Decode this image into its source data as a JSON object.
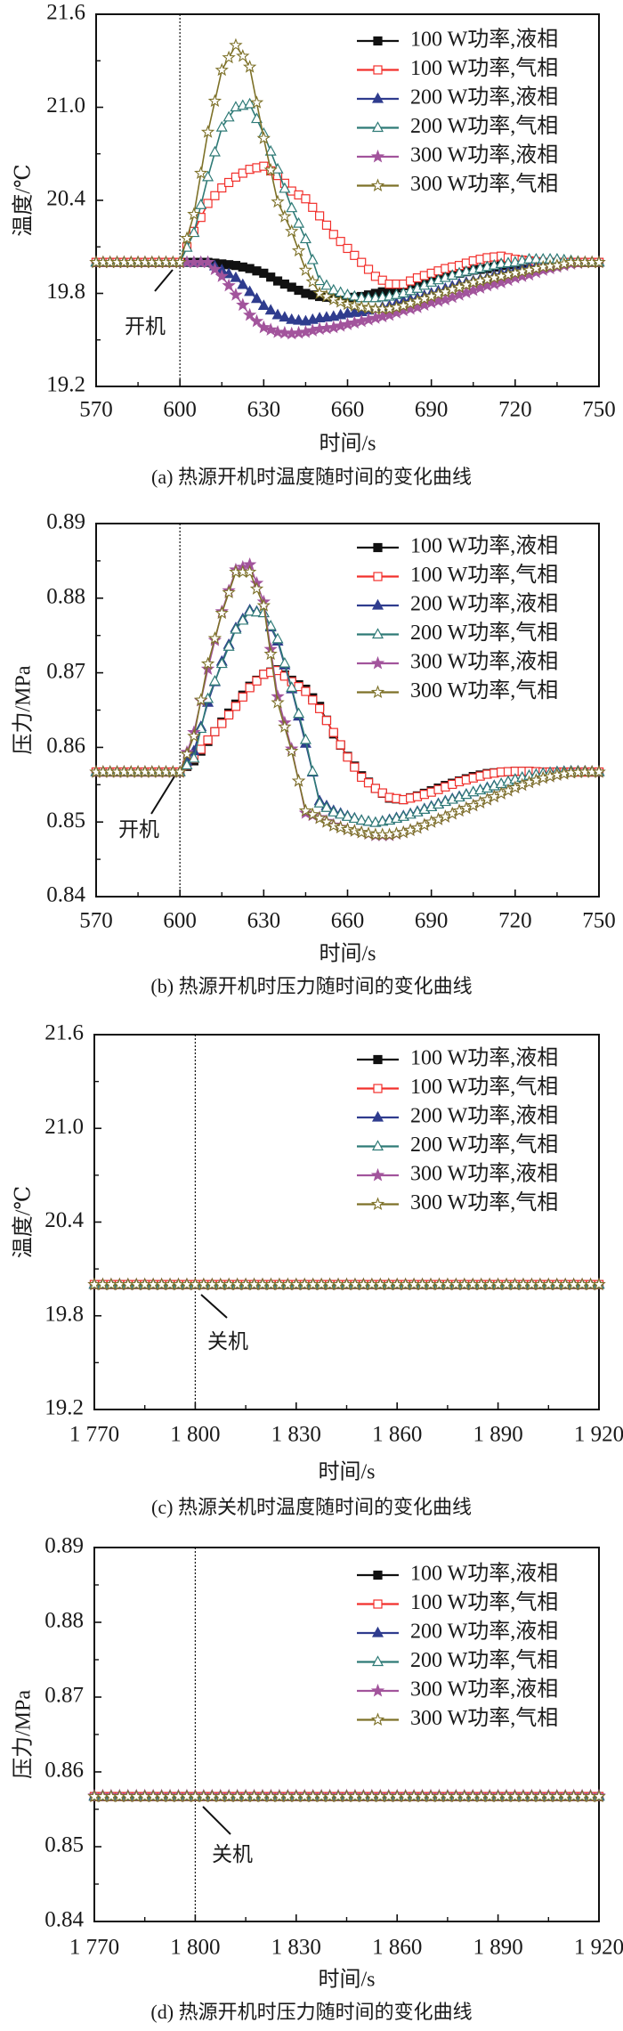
{
  "chart_data": [
    {
      "type": "line",
      "title": "(a) 热源开机时温度随时间的变化曲线",
      "xlabel": "时间/s",
      "ylabel": "温度/℃",
      "xlim": [
        570,
        750
      ],
      "ylim": [
        19.2,
        21.6
      ],
      "xticks": [
        570,
        600,
        630,
        660,
        690,
        720,
        750
      ],
      "xtick_labels": [
        "570",
        "600",
        "630",
        "660",
        "690",
        "720",
        "750"
      ],
      "yticks": [
        19.2,
        19.8,
        20.4,
        21.0,
        21.6
      ],
      "ytick_labels": [
        "19.2",
        "19.8",
        "20.4",
        "21.0",
        "21.6"
      ],
      "grid": false,
      "legend_position": "top-right",
      "annotation": {
        "text": "开机",
        "x": 600
      },
      "x": [
        570,
        575,
        580,
        585,
        590,
        595,
        600,
        605,
        610,
        615,
        620,
        625,
        630,
        635,
        640,
        645,
        650,
        655,
        660,
        665,
        670,
        675,
        680,
        685,
        690,
        695,
        700,
        705,
        710,
        715,
        720,
        725,
        730,
        735,
        740,
        745,
        750
      ],
      "series": [
        {
          "name": "100 W功率,液相",
          "color": "#111111",
          "marker": "square-filled",
          "y": [
            20,
            20,
            20,
            20,
            20,
            20,
            20,
            20.0,
            20.0,
            19.99,
            19.98,
            19.96,
            19.93,
            19.88,
            19.84,
            19.8,
            19.78,
            19.77,
            19.77,
            19.78,
            19.8,
            19.82,
            19.85,
            19.87,
            19.89,
            19.91,
            19.93,
            19.95,
            19.96,
            19.98,
            19.99,
            20.0,
            20.0,
            20.0,
            20.0,
            20.0,
            20.0
          ]
        },
        {
          "name": "100 W功率,气相",
          "color": "#f2302c",
          "marker": "square-open",
          "y": [
            20,
            20,
            20,
            20,
            20,
            20,
            20,
            20.2,
            20.38,
            20.48,
            20.55,
            20.6,
            20.62,
            20.56,
            20.46,
            20.41,
            20.3,
            20.18,
            20.09,
            20.0,
            19.91,
            19.86,
            19.86,
            19.9,
            19.93,
            19.96,
            19.98,
            20.01,
            20.03,
            20.04,
            20.02,
            20.01,
            20.0,
            20.0,
            20.0,
            20.0,
            20.0
          ]
        },
        {
          "name": "200 W功率,液相",
          "color": "#2f3c8e",
          "marker": "triangle-filled",
          "y": [
            20,
            20,
            20,
            20,
            20,
            20,
            20,
            20.0,
            20.0,
            19.95,
            19.9,
            19.81,
            19.72,
            19.66,
            19.63,
            19.62,
            19.64,
            19.65,
            19.67,
            19.68,
            19.7,
            19.72,
            19.75,
            19.77,
            19.8,
            19.83,
            19.86,
            19.88,
            19.9,
            19.93,
            19.95,
            19.97,
            19.98,
            19.99,
            20.0,
            20.0,
            20.0
          ]
        },
        {
          "name": "200 W功率,气相",
          "color": "#2e7a76",
          "marker": "triangle-open",
          "y": [
            20,
            20,
            20,
            20,
            20,
            20,
            20,
            20.19,
            20.55,
            20.87,
            21.0,
            21.02,
            20.83,
            20.6,
            20.35,
            20.15,
            19.88,
            19.82,
            19.79,
            19.77,
            19.77,
            19.78,
            19.8,
            19.83,
            19.87,
            19.9,
            19.93,
            19.95,
            19.97,
            19.99,
            20.0,
            20.02,
            20.02,
            20.02,
            20.01,
            20.0,
            20.0
          ]
        },
        {
          "name": "300 W功率,液相",
          "color": "#a2549c",
          "marker": "star-filled",
          "y": [
            20,
            20,
            20,
            20,
            20,
            20,
            20,
            20.0,
            20.0,
            19.91,
            19.79,
            19.66,
            19.58,
            19.55,
            19.54,
            19.55,
            19.57,
            19.58,
            19.6,
            19.62,
            19.64,
            19.66,
            19.69,
            19.71,
            19.74,
            19.76,
            19.79,
            19.82,
            19.85,
            19.87,
            19.9,
            19.92,
            19.95,
            19.97,
            19.99,
            20.0,
            20.0
          ]
        },
        {
          "name": "300 W功率,气相",
          "color": "#7d7128",
          "marker": "star-open",
          "y": [
            20,
            20,
            20,
            20,
            20,
            20,
            20,
            20.31,
            20.84,
            21.24,
            21.4,
            21.26,
            20.8,
            20.39,
            20.2,
            19.95,
            19.8,
            19.76,
            19.73,
            19.71,
            19.7,
            19.7,
            19.72,
            19.75,
            19.78,
            19.81,
            19.84,
            19.87,
            19.89,
            19.91,
            19.93,
            19.95,
            19.97,
            19.98,
            20.0,
            20.0,
            20.0
          ]
        }
      ]
    },
    {
      "type": "line",
      "title": "(b) 热源开机时压力随时间的变化曲线",
      "xlabel": "时间/s",
      "ylabel": "压力/MPa",
      "xlim": [
        570,
        750
      ],
      "ylim": [
        0.84,
        0.89
      ],
      "xticks": [
        570,
        600,
        630,
        660,
        690,
        720,
        750
      ],
      "xtick_labels": [
        "570",
        "600",
        "630",
        "660",
        "690",
        "720",
        "750"
      ],
      "yticks": [
        0.84,
        0.85,
        0.86,
        0.87,
        0.88,
        0.89
      ],
      "ytick_labels": [
        "0.84",
        "0.85",
        "0.86",
        "0.87",
        "0.88",
        "0.89"
      ],
      "grid": false,
      "legend_position": "top-right",
      "annotation": {
        "text": "开机",
        "x": 600
      },
      "x": [
        570,
        575,
        580,
        585,
        590,
        595,
        600,
        605,
        610,
        615,
        620,
        625,
        630,
        635,
        640,
        645,
        650,
        655,
        660,
        665,
        670,
        675,
        680,
        685,
        690,
        695,
        700,
        705,
        710,
        715,
        720,
        725,
        730,
        735,
        740,
        745,
        750
      ],
      "series": [
        {
          "name": "100 W功率,液相",
          "color": "#111111",
          "marker": "square-filled",
          "y": [
            0.8567,
            0.8567,
            0.8567,
            0.8567,
            0.8567,
            0.8567,
            0.8567,
            0.8582,
            0.8608,
            0.8634,
            0.8658,
            0.8682,
            0.8698,
            0.8704,
            0.869,
            0.8678,
            0.8655,
            0.8618,
            0.8588,
            0.8562,
            0.8545,
            0.8532,
            0.853,
            0.8535,
            0.8542,
            0.8549,
            0.8555,
            0.8561,
            0.8565,
            0.8567,
            0.8568,
            0.8568,
            0.8567,
            0.8567,
            0.8567,
            0.8567,
            0.8567
          ]
        },
        {
          "name": "100 W功率,气相",
          "color": "#f2302c",
          "marker": "square-open",
          "y": [
            0.8567,
            0.8567,
            0.8567,
            0.8567,
            0.8567,
            0.8567,
            0.8567,
            0.8585,
            0.861,
            0.8632,
            0.8655,
            0.868,
            0.8698,
            0.8703,
            0.8688,
            0.8675,
            0.8652,
            0.862,
            0.8587,
            0.856,
            0.8545,
            0.8533,
            0.853,
            0.8534,
            0.854,
            0.8547,
            0.8554,
            0.8559,
            0.8564,
            0.8567,
            0.8568,
            0.8568,
            0.8567,
            0.8567,
            0.8567,
            0.8567,
            0.8567
          ]
        },
        {
          "name": "200 W功率,液相",
          "color": "#2f3c8e",
          "marker": "triangle-filled",
          "y": [
            0.8567,
            0.8567,
            0.8567,
            0.8567,
            0.8567,
            0.8567,
            0.8567,
            0.8595,
            0.866,
            0.8715,
            0.876,
            0.8784,
            0.878,
            0.8742,
            0.8678,
            0.8605,
            0.8528,
            0.8515,
            0.8508,
            0.8502,
            0.8499,
            0.8503,
            0.8508,
            0.8514,
            0.8521,
            0.8528,
            0.8534,
            0.854,
            0.8546,
            0.8551,
            0.8557,
            0.8562,
            0.8565,
            0.8567,
            0.8568,
            0.8568,
            0.8567
          ]
        },
        {
          "name": "200 W功率,气相",
          "color": "#2e7a76",
          "marker": "triangle-open",
          "y": [
            0.8567,
            0.8567,
            0.8567,
            0.8567,
            0.8567,
            0.8567,
            0.8567,
            0.8585,
            0.8665,
            0.8712,
            0.8758,
            0.8782,
            0.878,
            0.8745,
            0.868,
            0.861,
            0.8525,
            0.8513,
            0.8507,
            0.8502,
            0.8499,
            0.8502,
            0.8507,
            0.8513,
            0.852,
            0.8527,
            0.8533,
            0.854,
            0.8545,
            0.8551,
            0.8557,
            0.8562,
            0.8565,
            0.8567,
            0.8568,
            0.8568,
            0.8567
          ]
        },
        {
          "name": "300 W功率,液相",
          "color": "#a2549c",
          "marker": "star-filled",
          "y": [
            0.8567,
            0.8567,
            0.8567,
            0.8567,
            0.8567,
            0.8567,
            0.8567,
            0.862,
            0.8705,
            0.8782,
            0.8838,
            0.8845,
            0.8795,
            0.8668,
            0.8598,
            0.8512,
            0.8506,
            0.8496,
            0.849,
            0.8486,
            0.8482,
            0.8482,
            0.8486,
            0.8492,
            0.85,
            0.8507,
            0.8515,
            0.8522,
            0.853,
            0.8538,
            0.8546,
            0.8553,
            0.8559,
            0.8563,
            0.8566,
            0.8567,
            0.8567
          ]
        },
        {
          "name": "300 W功率,气相",
          "color": "#7d7128",
          "marker": "star-open",
          "y": [
            0.8567,
            0.8567,
            0.8567,
            0.8567,
            0.8567,
            0.8567,
            0.8567,
            0.8615,
            0.8712,
            0.878,
            0.8835,
            0.8835,
            0.879,
            0.866,
            0.8595,
            0.8515,
            0.8505,
            0.8495,
            0.849,
            0.8486,
            0.8483,
            0.8483,
            0.8486,
            0.8492,
            0.85,
            0.8507,
            0.8515,
            0.8522,
            0.853,
            0.8538,
            0.8546,
            0.8553,
            0.8559,
            0.8563,
            0.8566,
            0.8567,
            0.8567
          ]
        }
      ]
    },
    {
      "type": "line",
      "title": "(c) 热源关机时温度随时间的变化曲线",
      "xlabel": "时间/s",
      "ylabel": "温度/℃",
      "xlim": [
        1770,
        1920
      ],
      "ylim": [
        19.2,
        21.6
      ],
      "xticks": [
        1770,
        1800,
        1830,
        1860,
        1890,
        1920
      ],
      "xtick_labels": [
        "1 770",
        "1 800",
        "1 830",
        "1 860",
        "1 890",
        "1 920"
      ],
      "yticks": [
        19.2,
        19.8,
        20.4,
        21.0,
        21.6
      ],
      "ytick_labels": [
        "19.2",
        "19.8",
        "20.4",
        "21.0",
        "21.6"
      ],
      "grid": false,
      "legend_position": "top-right",
      "annotation": {
        "text": "关机",
        "x": 1800
      },
      "x": [
        1770,
        1920
      ],
      "series": [
        {
          "name": "100 W功率,液相",
          "color": "#111111",
          "marker": "square-filled",
          "y": [
            20.0,
            20.0
          ]
        },
        {
          "name": "100 W功率,气相",
          "color": "#f2302c",
          "marker": "square-open",
          "y": [
            20.0,
            20.0
          ]
        },
        {
          "name": "200 W功率,液相",
          "color": "#2f3c8e",
          "marker": "triangle-filled",
          "y": [
            20.0,
            20.0
          ]
        },
        {
          "name": "200 W功率,气相",
          "color": "#2e7a76",
          "marker": "triangle-open",
          "y": [
            20.0,
            20.0
          ]
        },
        {
          "name": "300 W功率,液相",
          "color": "#a2549c",
          "marker": "star-filled",
          "y": [
            20.0,
            20.0
          ]
        },
        {
          "name": "300 W功率,气相",
          "color": "#7d7128",
          "marker": "star-open",
          "y": [
            20.0,
            20.0
          ]
        }
      ]
    },
    {
      "type": "line",
      "title": "(d) 热源开机时压力随时间的变化曲线",
      "xlabel": "时间/s",
      "ylabel": "压力/MPa",
      "xlim": [
        1770,
        1920
      ],
      "ylim": [
        0.84,
        0.89
      ],
      "xticks": [
        1770,
        1800,
        1830,
        1860,
        1890,
        1920
      ],
      "xtick_labels": [
        "1 770",
        "1 800",
        "1 830",
        "1 860",
        "1 890",
        "1 920"
      ],
      "yticks": [
        0.84,
        0.85,
        0.86,
        0.87,
        0.88,
        0.89
      ],
      "ytick_labels": [
        "0.84",
        "0.85",
        "0.86",
        "0.87",
        "0.88",
        "0.89"
      ],
      "grid": false,
      "legend_position": "top-right",
      "annotation": {
        "text": "关机",
        "x": 1800
      },
      "x": [
        1770,
        1920
      ],
      "series": [
        {
          "name": "100 W功率,液相",
          "color": "#111111",
          "marker": "square-filled",
          "y": [
            0.8567,
            0.8567
          ]
        },
        {
          "name": "100 W功率,气相",
          "color": "#f2302c",
          "marker": "square-open",
          "y": [
            0.8567,
            0.8567
          ]
        },
        {
          "name": "200 W功率,液相",
          "color": "#2f3c8e",
          "marker": "triangle-filled",
          "y": [
            0.8568,
            0.8568
          ]
        },
        {
          "name": "200 W功率,气相",
          "color": "#2e7a76",
          "marker": "triangle-open",
          "y": [
            0.8567,
            0.8567
          ]
        },
        {
          "name": "300 W功率,液相",
          "color": "#a2549c",
          "marker": "star-filled",
          "y": [
            0.8568,
            0.8568
          ]
        },
        {
          "name": "300 W功率,气相",
          "color": "#7d7128",
          "marker": "star-open",
          "y": [
            0.8567,
            0.8567
          ]
        }
      ]
    }
  ]
}
